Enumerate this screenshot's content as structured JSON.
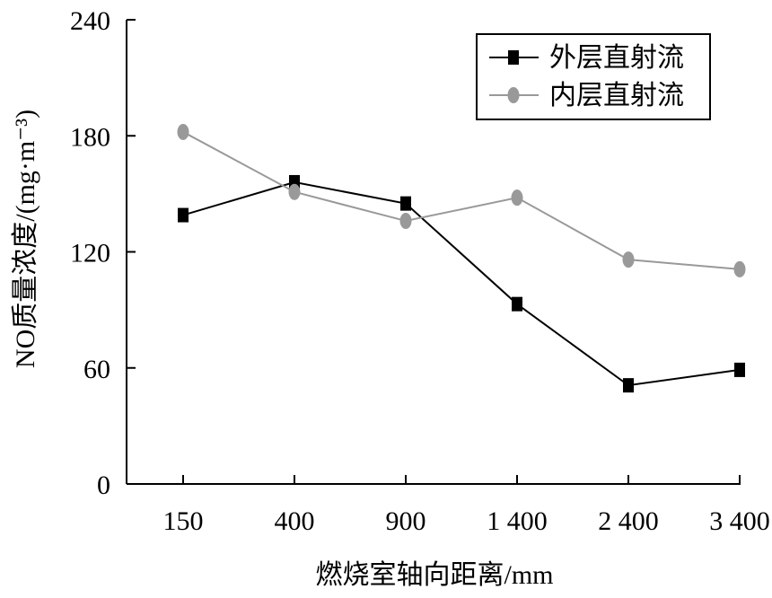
{
  "chart_data": {
    "type": "line",
    "categories": [
      "150",
      "400",
      "900",
      "1 400",
      "2 400",
      "3 400"
    ],
    "xlabel": "燃烧室轴向距离/mm",
    "ylabel": "NO质量浓度/(mg·m⁻³)",
    "ylim": [
      0,
      240
    ],
    "yticks": [
      0,
      60,
      120,
      180,
      240
    ],
    "grid": false,
    "legend_position": "top-right",
    "series": [
      {
        "name": "外层直射流",
        "values": [
          139,
          156,
          145,
          93,
          51,
          59
        ],
        "color": "#000000",
        "marker": "square"
      },
      {
        "name": "内层直射流",
        "values": [
          182,
          151,
          136,
          148,
          116,
          111
        ],
        "color": "#999999",
        "marker": "circle"
      }
    ]
  }
}
